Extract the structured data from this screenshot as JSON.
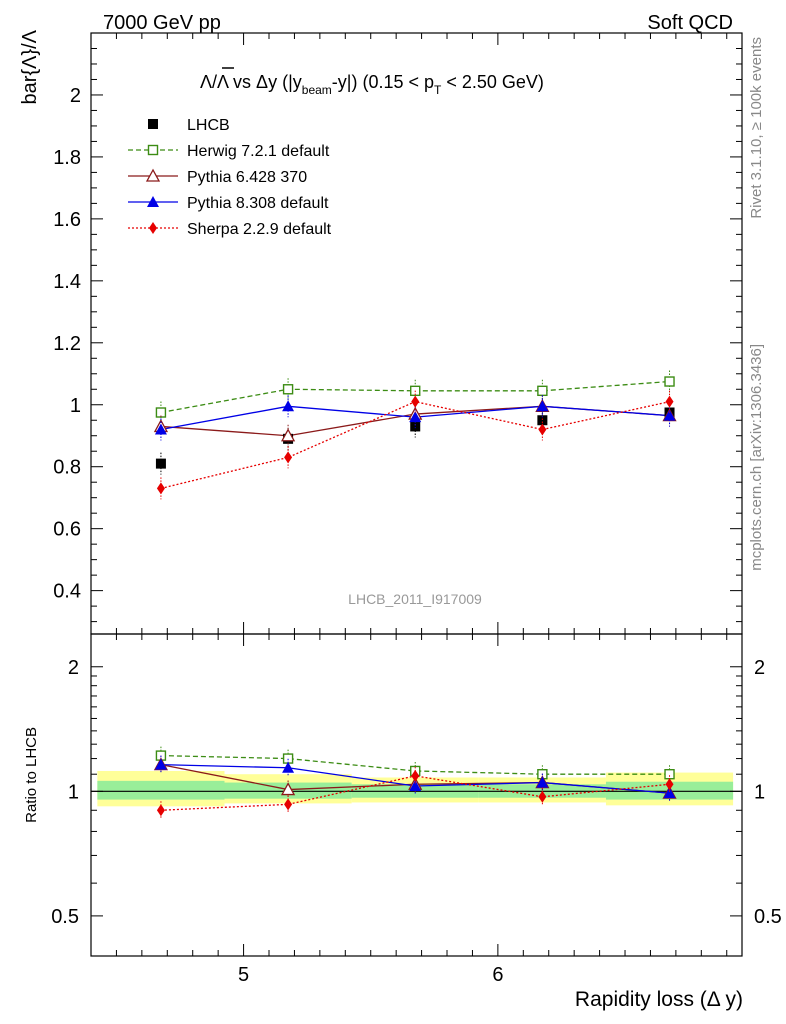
{
  "header": {
    "left": "7000 GeV pp",
    "right": "Soft QCD"
  },
  "side_labels": {
    "top": "Rivet 3.1.10, ≥ 100k events",
    "bottom": "mcplots.cern.ch [arXiv:1306.3436]"
  },
  "watermark": "LHCB_2011_I917009",
  "colors": {
    "LHCB": "#000000",
    "Herwig": "#3c8c14",
    "Pythia6": "#8b1a1a",
    "Pythia8": "#0000e6",
    "Sherpa": "#e60000",
    "band_outer": "#ffff99",
    "band_inner": "#99ee99"
  },
  "chart_data": [
    {
      "type": "line",
      "title_parts": {
        "lead": "Λ/Λ vs Δy (|y",
        "sub1": "beam",
        "mid": "-y|) (0.15 < p",
        "sub2": "T",
        "tail": " < 2.50 GeV)"
      },
      "xlabel": "Rapidity loss (Δ y)",
      "ylabel": "bar{Λ}/Λ",
      "xlim": [
        4.4,
        6.96
      ],
      "ylim": [
        0.26,
        2.2
      ],
      "xticks": [
        5,
        6
      ],
      "yticks": [
        0.4,
        0.6,
        0.8,
        1.0,
        1.2,
        1.4,
        1.6,
        1.8,
        2.0
      ],
      "ytick_labels": [
        "0.4",
        "0.6",
        "0.8",
        "1",
        "1.2",
        "1.4",
        "1.6",
        "1.8",
        "2"
      ],
      "legend_position": "top-left",
      "x": [
        4.675,
        5.175,
        5.675,
        6.175,
        6.675
      ],
      "series": [
        {
          "name": "LHCB",
          "marker": "square-filled",
          "line": "none",
          "values": [
            0.81,
            0.89,
            0.93,
            0.95,
            0.975
          ]
        },
        {
          "name": "Herwig 7.2.1 default",
          "marker": "square-open",
          "line": "dashed",
          "values": [
            0.975,
            1.05,
            1.045,
            1.045,
            1.075
          ]
        },
        {
          "name": "Pythia 6.428 370",
          "marker": "triangle-open",
          "line": "solid",
          "values": [
            0.93,
            0.9,
            0.97,
            0.995,
            0.965
          ]
        },
        {
          "name": "Pythia 8.308 default",
          "marker": "triangle-filled",
          "line": "solid",
          "values": [
            0.92,
            0.995,
            0.96,
            0.995,
            0.965
          ]
        },
        {
          "name": "Sherpa 2.2.9 default",
          "marker": "diamond-filled",
          "line": "dotted",
          "values": [
            0.73,
            0.83,
            1.01,
            0.92,
            1.01
          ]
        }
      ]
    },
    {
      "type": "line",
      "ylabel": "Ratio to LHCB",
      "xlim": [
        4.4,
        6.96
      ],
      "ylim": [
        0.4,
        2.4
      ],
      "scale": "log",
      "yticks": [
        0.5,
        1,
        2
      ],
      "ytick_labels": [
        "0.5",
        "1",
        "2"
      ],
      "band_edges": [
        4.425,
        4.925,
        5.425,
        5.925,
        6.425,
        6.925
      ],
      "band_outer": [
        [
          0.92,
          1.12
        ],
        [
          0.935,
          1.1
        ],
        [
          0.94,
          1.08
        ],
        [
          0.94,
          1.08
        ],
        [
          0.925,
          1.11
        ]
      ],
      "band_inner": [
        [
          0.955,
          1.06
        ],
        [
          0.96,
          1.05
        ],
        [
          0.965,
          1.04
        ],
        [
          0.965,
          1.04
        ],
        [
          0.955,
          1.055
        ]
      ],
      "x": [
        4.675,
        5.175,
        5.675,
        6.175,
        6.675
      ],
      "series": [
        {
          "name": "Herwig 7.2.1 default",
          "values": [
            1.22,
            1.2,
            1.12,
            1.1,
            1.1
          ]
        },
        {
          "name": "Pythia 6.428 370",
          "values": [
            1.16,
            1.01,
            1.04,
            1.05,
            0.99
          ]
        },
        {
          "name": "Pythia 8.308 default",
          "values": [
            1.16,
            1.14,
            1.03,
            1.05,
            0.99
          ]
        },
        {
          "name": "Sherpa 2.2.9 default",
          "values": [
            0.9,
            0.93,
            1.09,
            0.97,
            1.04
          ]
        }
      ]
    }
  ]
}
